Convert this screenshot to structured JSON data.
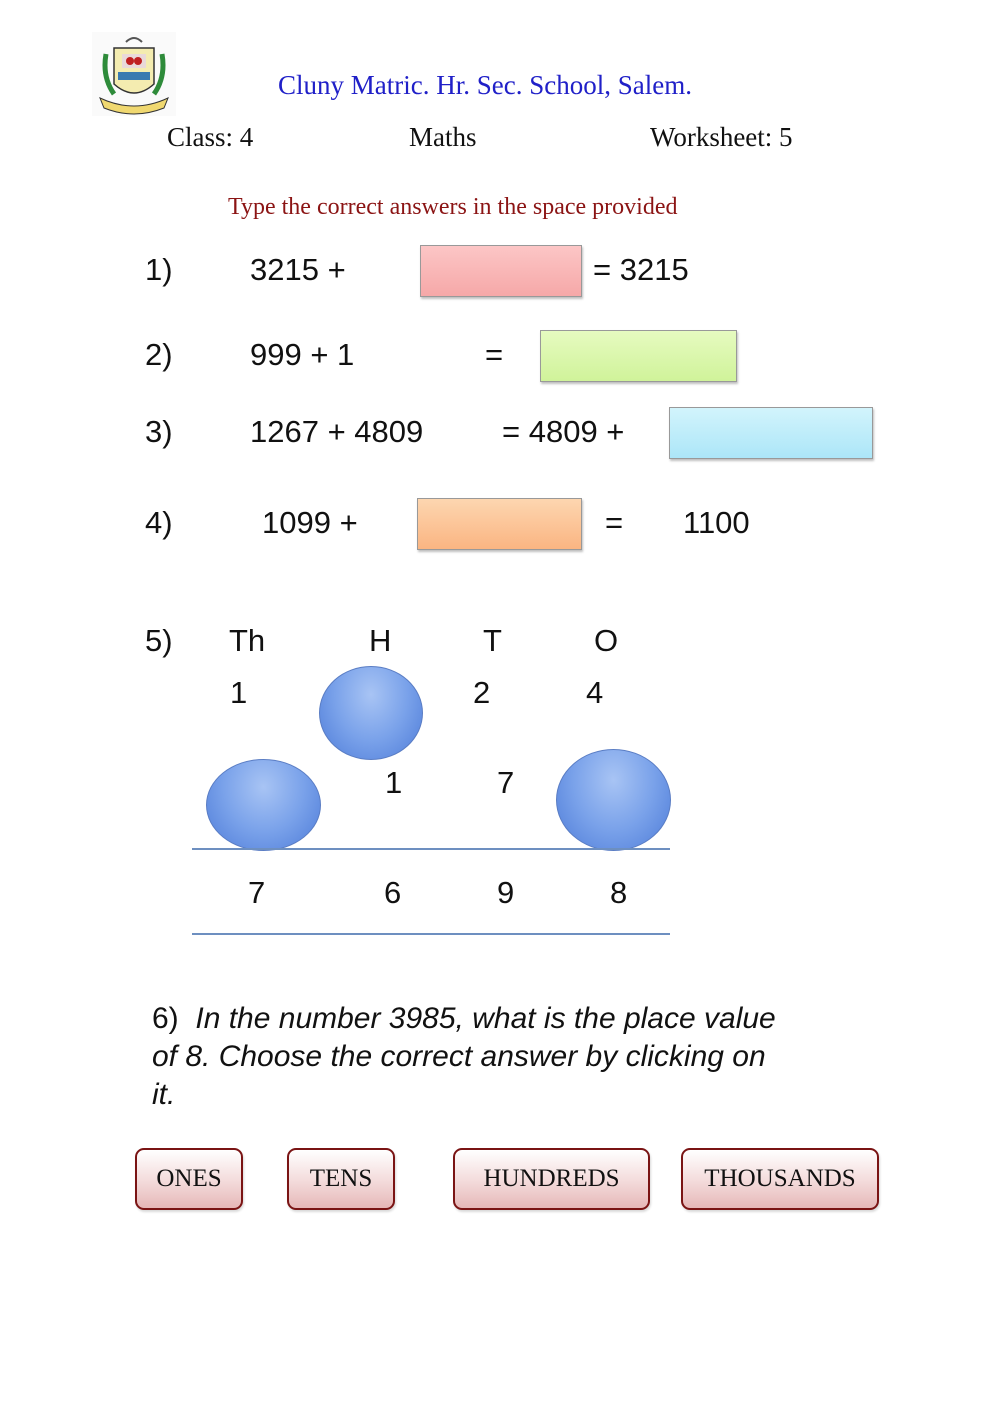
{
  "header": {
    "school": "Cluny Matric. Hr. Sec. School, Salem.",
    "class_label": "Class:  4",
    "subject": "Maths",
    "worksheet": "Worksheet: 5",
    "logo_text": "CLUNY - SALEM"
  },
  "instruction": "Type the correct answers in the space provided",
  "questions": [
    {
      "num": "1)",
      "left": "3215  +",
      "right": "=  3215",
      "box_color": "#f9b8b8"
    },
    {
      "num": "2)",
      "left": "999  +   1",
      "eq": "=",
      "box_color": "#d8f7a8"
    },
    {
      "num": "3)",
      "left": "1267 + 4809",
      "right": "= 4809 +",
      "box_color": "#bdeefa"
    },
    {
      "num": "4)",
      "left": "1099 +",
      "eq": "=",
      "right": "1100",
      "box_color": "#fcc89a"
    }
  ],
  "q5": {
    "num": "5)",
    "headers": [
      "Th",
      "H",
      "T",
      "O"
    ],
    "row1": [
      "1",
      "2",
      "4"
    ],
    "row2": [
      "1",
      "7"
    ],
    "result": [
      "7",
      "6",
      "9",
      "8"
    ]
  },
  "q6": {
    "text": "6)  In the number 3985, what is the place value of 8. Choose the correct answer by clicking on it.",
    "num": "6)",
    "question": "In the number 3985, what is the place value of 8. Choose the correct answer by clicking on it.",
    "choices": [
      "ONES",
      "TENS",
      "HUNDREDS",
      "THOUSANDS"
    ]
  }
}
